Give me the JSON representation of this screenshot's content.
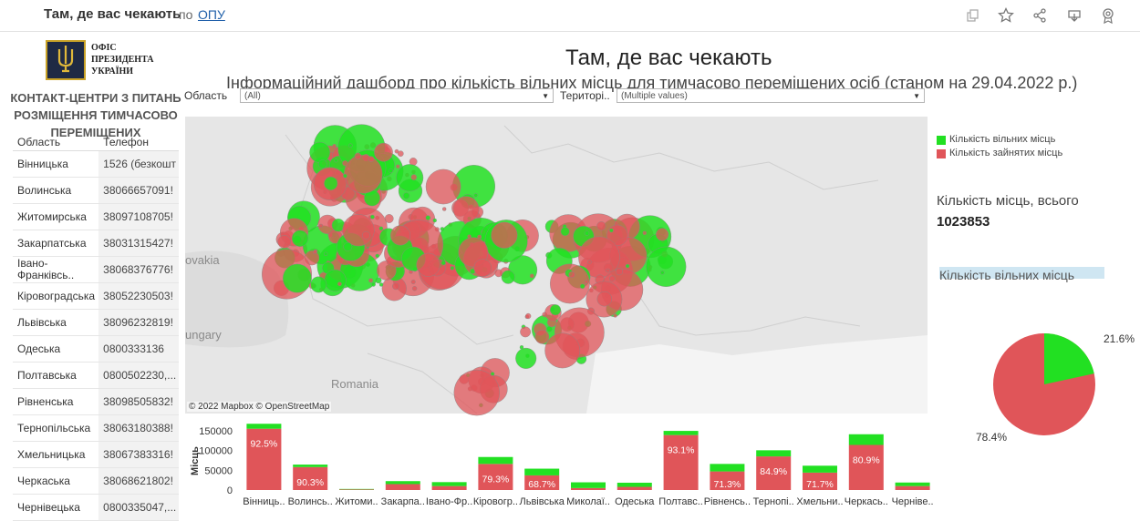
{
  "topbar": {
    "title": "Там, де вас чекають",
    "by": "по",
    "author": "ОПУ",
    "icons": [
      "copy-icon",
      "star-icon",
      "share-icon",
      "download-icon",
      "badge-icon"
    ]
  },
  "logo": {
    "line1": "ОФІС",
    "line2": "ПРЕЗИДЕНТА",
    "line3": "УКРАЇНИ",
    "emblem": "trident-icon"
  },
  "contacts": {
    "title": "КОНТАКТ-ЦЕНТРИ З ПИТАНЬ РОЗМІЩЕННЯ ТИМЧАСОВО ПЕРЕМІЩЕНИХ",
    "col_region": "Область",
    "col_phone": "Телефон",
    "rows": [
      {
        "region": "Вінницька",
        "phone": "1526 (безкошт"
      },
      {
        "region": "Волинська",
        "phone": "38066657091!"
      },
      {
        "region": "Житомирська",
        "phone": "38097108705!"
      },
      {
        "region": "Закарпатська",
        "phone": "38031315427!"
      },
      {
        "region": "Івано-Франківсь..",
        "phone": "38068376776!"
      },
      {
        "region": "Кіровоградська",
        "phone": "38052230503!"
      },
      {
        "region": "Львівська",
        "phone": "38096232819!"
      },
      {
        "region": "Одеська",
        "phone": "0800333136"
      },
      {
        "region": "Полтавська",
        "phone": "0800502230,..."
      },
      {
        "region": "Рівненська",
        "phone": "38098505832!"
      },
      {
        "region": "Тернопільська",
        "phone": "38063180388!"
      },
      {
        "region": "Хмельницька",
        "phone": "38067383316!"
      },
      {
        "region": "Черкаська",
        "phone": "38068621802!"
      },
      {
        "region": "Чернівецька",
        "phone": "0800335047,..."
      }
    ]
  },
  "dashboard": {
    "title": "Там, де вас чекають",
    "subtitle": "Інформаційний дашборд про кількість вільних місць для тимчасово переміщених осіб (станом на 29.04.2022 р.)"
  },
  "filters": {
    "region_label": "Область",
    "region_value": "(All)",
    "territory_label": "Територі..",
    "territory_value": "(Multiple values)"
  },
  "map": {
    "attribution": "© 2022 Mapbox © OpenStreetMap",
    "labels": [
      "ovakia",
      "ungary",
      "Romania"
    ],
    "colors": {
      "free": "#22e022",
      "occupied": "#e05559"
    }
  },
  "legend": {
    "free": "Кількість вільних місць",
    "occupied": "Кількість зайнятих місць"
  },
  "summary": {
    "total_label": "Кількість місць,  всього",
    "total_value": "1023853",
    "free_header": "Кількість вільних місць"
  },
  "pie": {
    "free_pct": "21.6%",
    "occupied_pct": "78.4%",
    "free_share": 0.216
  },
  "chart_data": {
    "type": "bar",
    "ylabel": "Місць",
    "yticks": [
      0,
      50000,
      100000,
      150000
    ],
    "ylim": [
      0,
      175000
    ],
    "categories": [
      "Вінниць..",
      "Волинсь..",
      "Житоми..",
      "Закарпа..",
      "Івано-Фр..",
      "Кіровогр..",
      "Львівська",
      "Миколаї..",
      "Одеська",
      "Полтавс..",
      "Рівненсь..",
      "Тернопі..",
      "Хмельни..",
      "Черкась..",
      "Черніве.."
    ],
    "series": [
      {
        "name": "Кількість зайнятих місць",
        "values": [
          155000,
          58000,
          1500,
          15000,
          10000,
          66000,
          37000,
          5000,
          8000,
          139000,
          47000,
          85000,
          44000,
          114000,
          10000
        ]
      },
      {
        "name": "Кількість вільних місць",
        "values": [
          12500,
          6300,
          1200,
          7500,
          10000,
          17500,
          17000,
          14500,
          10500,
          10500,
          19000,
          15500,
          17500,
          27000,
          9000
        ]
      }
    ],
    "data_labels": [
      "92.5%",
      "90.3%",
      "",
      "",
      "",
      "79.3%",
      "68.7%",
      "",
      "",
      "93.1%",
      "71.3%",
      "84.9%",
      "71.7%",
      "80.9%",
      ""
    ]
  }
}
